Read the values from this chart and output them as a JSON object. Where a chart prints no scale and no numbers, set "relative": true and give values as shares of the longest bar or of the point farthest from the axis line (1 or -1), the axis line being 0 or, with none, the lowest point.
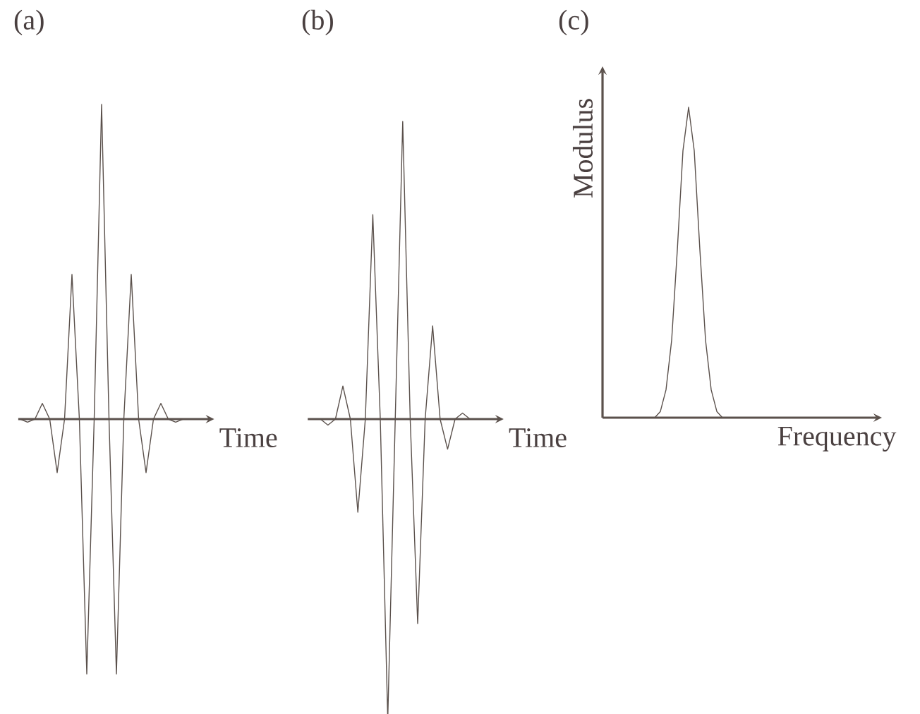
{
  "chart_data": [
    {
      "type": "line",
      "title": "(a)",
      "xlabel": "Time",
      "relative": true,
      "color": "#5b514c",
      "categories": [
        null,
        null,
        null,
        null,
        null,
        null,
        null,
        null,
        null,
        null,
        null,
        null,
        null,
        null,
        null,
        null,
        null,
        null,
        null,
        null,
        null,
        null,
        null,
        null,
        null,
        null
      ],
      "values": [
        0,
        -0.01,
        0,
        0.05,
        0,
        -0.17,
        0,
        0.46,
        0,
        -0.81,
        0,
        1,
        0,
        -0.81,
        0,
        0.46,
        0,
        -0.17,
        0,
        0.05,
        0,
        -0.01,
        0,
        0,
        0,
        0
      ]
    },
    {
      "type": "line",
      "title": "(b)",
      "xlabel": "Time",
      "relative": true,
      "color": "#5b514c",
      "categories": [
        null,
        null,
        null,
        null,
        null,
        null,
        null,
        null,
        null,
        null,
        null,
        null,
        null,
        null,
        null,
        null,
        null,
        null,
        null,
        null,
        null,
        null,
        null,
        null,
        null,
        null
      ],
      "values": [
        0,
        0,
        -0.02,
        0,
        0.11,
        0,
        -0.31,
        0,
        0.68,
        0,
        -1,
        0,
        0.99,
        0,
        -0.68,
        0,
        0.31,
        0,
        -0.1,
        0,
        0.02,
        0,
        0,
        0,
        0,
        0
      ]
    },
    {
      "type": "line",
      "title": "(c)",
      "xlabel": "Frequency",
      "ylabel": "Modulus",
      "relative": true,
      "color": "#5b514c",
      "categories": [
        null,
        null,
        null,
        null,
        null,
        null,
        null,
        null,
        null,
        null,
        null,
        null,
        null,
        null,
        null,
        null,
        null,
        null,
        null,
        null,
        null,
        null,
        null,
        null,
        null,
        null,
        null,
        null,
        null,
        null,
        null,
        null,
        null,
        null,
        null,
        null,
        null,
        null,
        null,
        null,
        null,
        null,
        null,
        null,
        null,
        null,
        null,
        null,
        null
      ],
      "values": [
        0,
        0,
        0,
        0,
        0,
        0,
        0,
        0,
        0,
        0,
        0.02,
        0.09,
        0.25,
        0.54,
        0.86,
        1,
        0.86,
        0.54,
        0.25,
        0.09,
        0.02,
        0,
        0,
        0,
        0,
        0,
        0,
        0,
        0,
        0,
        0,
        0,
        0,
        0,
        0,
        0,
        0,
        0,
        0,
        0,
        0,
        0,
        0,
        0,
        0,
        0,
        0,
        0,
        0
      ]
    }
  ]
}
